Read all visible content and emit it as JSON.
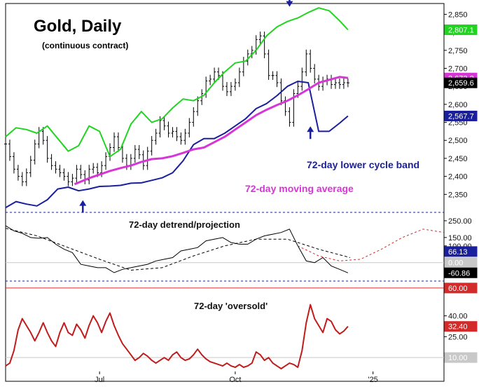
{
  "chart_data": [
    {
      "type": "line",
      "panel": "price",
      "title": "Gold, Daily",
      "subtitle": "(continuous contract)",
      "ylim": [
        2300,
        2880
      ],
      "y_ticks": [
        2350,
        2400,
        2450,
        2500,
        2550,
        2600,
        2650,
        2700,
        2750,
        2800,
        2850
      ],
      "y_tick_labels": [
        "2,350",
        "2,400",
        "2,450",
        "2,500",
        "2,550",
        "2,600",
        "2,650",
        "2,700",
        "2,750",
        "2,800",
        "2,850"
      ],
      "x_labels": [
        {
          "label": "Jul",
          "day": 45
        },
        {
          "label": "Oct",
          "day": 110
        },
        {
          "label": "'25",
          "day": 176
        }
      ],
      "xlim": [
        0,
        210
      ],
      "colors": {
        "price": "#000000",
        "upper_band": "#22d422",
        "moving_average": "#d636d6",
        "lower_band": "#1a1f9c"
      },
      "series": [
        {
          "key": "price",
          "x": [
            0,
            2,
            4,
            6,
            8,
            10,
            12,
            14,
            16,
            18,
            20,
            22,
            24,
            26,
            28,
            30,
            32,
            34,
            36,
            38,
            40,
            42,
            44,
            46,
            48,
            50,
            52,
            54,
            56,
            58,
            60,
            62,
            64,
            66,
            68,
            70,
            72,
            74,
            76,
            78,
            80,
            82,
            84,
            86,
            88,
            90,
            92,
            94,
            96,
            98,
            100,
            102,
            104,
            106,
            108,
            110,
            112,
            114,
            116,
            118,
            120,
            122,
            124,
            126,
            128,
            130,
            132,
            134,
            136,
            138,
            140,
            142,
            144,
            146,
            148,
            150,
            152,
            154,
            156,
            158,
            160,
            162,
            164
          ],
          "values": [
            2490,
            2455,
            2420,
            2400,
            2385,
            2410,
            2445,
            2490,
            2525,
            2500,
            2450,
            2430,
            2420,
            2410,
            2400,
            2385,
            2395,
            2420,
            2405,
            2390,
            2420,
            2425,
            2410,
            2430,
            2455,
            2480,
            2510,
            2480,
            2450,
            2430,
            2450,
            2475,
            2460,
            2430,
            2470,
            2500,
            2520,
            2555,
            2540,
            2520,
            2525,
            2510,
            2500,
            2520,
            2550,
            2580,
            2610,
            2630,
            2665,
            2670,
            2690,
            2680,
            2650,
            2635,
            2650,
            2660,
            2690,
            2720,
            2740,
            2750,
            2780,
            2790,
            2740,
            2680,
            2680,
            2660,
            2610,
            2580,
            2550,
            2630,
            2650,
            2690,
            2740,
            2700,
            2670,
            2650,
            2665,
            2670,
            2655,
            2660,
            2655,
            2660,
            2659.6
          ]
        },
        {
          "key": "upper_band",
          "x": [
            0,
            5,
            10,
            15,
            20,
            25,
            30,
            35,
            40,
            45,
            50,
            55,
            60,
            65,
            70,
            75,
            80,
            85,
            90,
            95,
            100,
            105,
            110,
            115,
            120,
            125,
            130,
            135,
            140,
            145,
            150,
            155,
            160,
            164
          ],
          "values": [
            2510,
            2535,
            2530,
            2520,
            2540,
            2505,
            2470,
            2485,
            2540,
            2525,
            2455,
            2475,
            2545,
            2580,
            2550,
            2560,
            2590,
            2615,
            2610,
            2625,
            2660,
            2690,
            2715,
            2720,
            2750,
            2790,
            2815,
            2830,
            2840,
            2855,
            2868,
            2860,
            2832,
            2807.1
          ]
        },
        {
          "key": "moving_average",
          "x": [
            33,
            40,
            45,
            50,
            55,
            60,
            65,
            70,
            75,
            80,
            85,
            90,
            95,
            100,
            105,
            110,
            115,
            120,
            125,
            130,
            135,
            140,
            145,
            150,
            155,
            160,
            164
          ],
          "values": [
            2378,
            2395,
            2405,
            2415,
            2423,
            2430,
            2440,
            2448,
            2450,
            2456,
            2465,
            2475,
            2480,
            2495,
            2510,
            2530,
            2550,
            2570,
            2585,
            2598,
            2610,
            2625,
            2642,
            2660,
            2668,
            2676,
            2673.2
          ]
        },
        {
          "key": "lower_band",
          "x": [
            0,
            5,
            10,
            15,
            20,
            25,
            30,
            35,
            40,
            45,
            50,
            55,
            60,
            65,
            70,
            75,
            80,
            85,
            90,
            95,
            100,
            105,
            110,
            115,
            120,
            125,
            130,
            135,
            140,
            145,
            150,
            155,
            160,
            164
          ],
          "values": [
            2313,
            2330,
            2323,
            2318,
            2335,
            2365,
            2370,
            2360,
            2365,
            2372,
            2373,
            2375,
            2381,
            2382,
            2389,
            2396,
            2410,
            2443,
            2488,
            2505,
            2505,
            2520,
            2540,
            2560,
            2588,
            2602,
            2624,
            2650,
            2664,
            2660,
            2525,
            2525,
            2548,
            2567.7
          ]
        }
      ],
      "badges": [
        {
          "text": "2,807.1",
          "series": "upper_band",
          "value": 2807.1,
          "bg": "#22d422",
          "fg": "#ffffff"
        },
        {
          "text": "2,673.2",
          "series": "moving_average",
          "value": 2673.2,
          "bg": "#d636d6",
          "fg": "#ffffff"
        },
        {
          "text": "2,659.6",
          "series": "price",
          "value": 2659.6,
          "bg": "#000000",
          "fg": "#ffffff"
        },
        {
          "text": "2,567.7",
          "series": "lower_band",
          "value": 2567.7,
          "bg": "#1a1f9c",
          "fg": "#ffffff"
        }
      ],
      "annotations": [
        {
          "text": "72-day lower cycle band",
          "color": "#1a1f9c",
          "day": 145,
          "value": 2460
        },
        {
          "text": "72-day moving average",
          "color": "#d636d6",
          "day": 113,
          "value": 2400
        }
      ],
      "arrows": [
        {
          "day": 136,
          "value": 2875,
          "direction": "down"
        },
        {
          "day": 146,
          "value": 2535,
          "direction": "up"
        },
        {
          "day": 37,
          "value": 2330,
          "direction": "up"
        }
      ]
    },
    {
      "type": "line",
      "panel": "detrend",
      "title": "72-day detrend/projection",
      "ylim": [
        -110,
        300
      ],
      "y_ticks": [
        250,
        150,
        100,
        66.13,
        0,
        -60.86
      ],
      "y_tick_labels": [
        "250.00",
        "150.00",
        "100.00",
        "66.13",
        "0.00",
        "-60.86"
      ],
      "gridline_value": 0,
      "series": [
        {
          "key": "detrend",
          "color": "#000000",
          "x": [
            0,
            4,
            8,
            12,
            16,
            20,
            24,
            28,
            32,
            36,
            40,
            44,
            48,
            52,
            56,
            60,
            64,
            68,
            72,
            76,
            80,
            84,
            88,
            92,
            96,
            100,
            104,
            108,
            112,
            116,
            120,
            124,
            128,
            132,
            136,
            140,
            144,
            148,
            152,
            156,
            160,
            164
          ],
          "values": [
            220,
            190,
            175,
            150,
            145,
            150,
            110,
            80,
            60,
            -10,
            -20,
            -30,
            -30,
            -60,
            -40,
            -30,
            -20,
            -10,
            10,
            20,
            30,
            70,
            80,
            90,
            130,
            140,
            150,
            120,
            110,
            110,
            140,
            160,
            170,
            180,
            200,
            100,
            10,
            0,
            30,
            -20,
            -40,
            -60.86
          ]
        },
        {
          "key": "projection",
          "color": "#000000",
          "x": [
            0,
            15,
            30,
            45,
            60,
            75,
            90,
            105,
            120,
            135,
            150,
            165
          ],
          "values": [
            205,
            160,
            90,
            20,
            -45,
            -30,
            40,
            100,
            140,
            140,
            80,
            30
          ]
        },
        {
          "key": "future_projection",
          "color": "#d32a2a",
          "x": [
            140,
            150,
            160,
            170,
            180,
            190,
            200,
            210
          ],
          "values": [
            100,
            40,
            10,
            20,
            80,
            150,
            200,
            180
          ]
        }
      ],
      "badges": [
        {
          "text": "66.13",
          "value": 66.13,
          "bg": "#1a1f9c",
          "fg": "#ffffff"
        },
        {
          "text": "0.00",
          "value": 0,
          "bg": "#c8c8c8",
          "fg": "#ffffff"
        },
        {
          "text": "-60.86",
          "value": -60.86,
          "bg": "#000000",
          "fg": "#ffffff"
        }
      ]
    },
    {
      "type": "line",
      "panel": "oversold",
      "title": "72-day 'oversold'",
      "ylim": [
        0,
        65
      ],
      "y_ticks": [
        60,
        40,
        32.4,
        25,
        10
      ],
      "y_tick_labels": [
        "60.00",
        "40.00",
        "32.40",
        "25.00",
        "10.00"
      ],
      "reference_lines": [
        {
          "value": 60,
          "color": "#d32a2a"
        },
        {
          "value": 10,
          "color": "#c8c8c8"
        }
      ],
      "series": [
        {
          "key": "oversold",
          "color": "#c01c1c",
          "x": [
            0,
            2,
            4,
            6,
            8,
            10,
            12,
            14,
            16,
            18,
            20,
            22,
            24,
            26,
            28,
            30,
            32,
            34,
            36,
            38,
            40,
            42,
            44,
            46,
            48,
            50,
            52,
            54,
            56,
            58,
            60,
            62,
            64,
            66,
            68,
            70,
            72,
            74,
            76,
            78,
            80,
            82,
            84,
            86,
            88,
            90,
            92,
            94,
            96,
            98,
            100,
            102,
            104,
            106,
            108,
            110,
            112,
            114,
            116,
            118,
            120,
            122,
            124,
            126,
            128,
            130,
            132,
            134,
            136,
            138,
            140,
            142,
            144,
            146,
            148,
            150,
            152,
            154,
            156,
            158,
            160,
            162,
            164
          ],
          "values": [
            4,
            6,
            15,
            30,
            38,
            33,
            28,
            22,
            28,
            35,
            28,
            22,
            18,
            28,
            35,
            28,
            26,
            34,
            30,
            24,
            33,
            40,
            35,
            28,
            36,
            42,
            33,
            26,
            20,
            16,
            12,
            8,
            10,
            13,
            11,
            8,
            6,
            8,
            10,
            8,
            12,
            14,
            10,
            8,
            9,
            12,
            16,
            12,
            9,
            7,
            6,
            5,
            4,
            6,
            4,
            3,
            5,
            3,
            4,
            6,
            14,
            12,
            8,
            10,
            6,
            4,
            2,
            4,
            6,
            5,
            3,
            15,
            35,
            48,
            38,
            33,
            28,
            38,
            36,
            30,
            27,
            29,
            32.4
          ]
        }
      ],
      "badges": [
        {
          "text": "60.00",
          "value": 60,
          "bg": "#d32a2a",
          "fg": "#ffffff"
        },
        {
          "text": "32.40",
          "value": 32.4,
          "bg": "#d32a2a",
          "fg": "#ffffff"
        },
        {
          "text": "10.00",
          "value": 10,
          "bg": "#c8c8c8",
          "fg": "#ffffff"
        }
      ]
    }
  ]
}
